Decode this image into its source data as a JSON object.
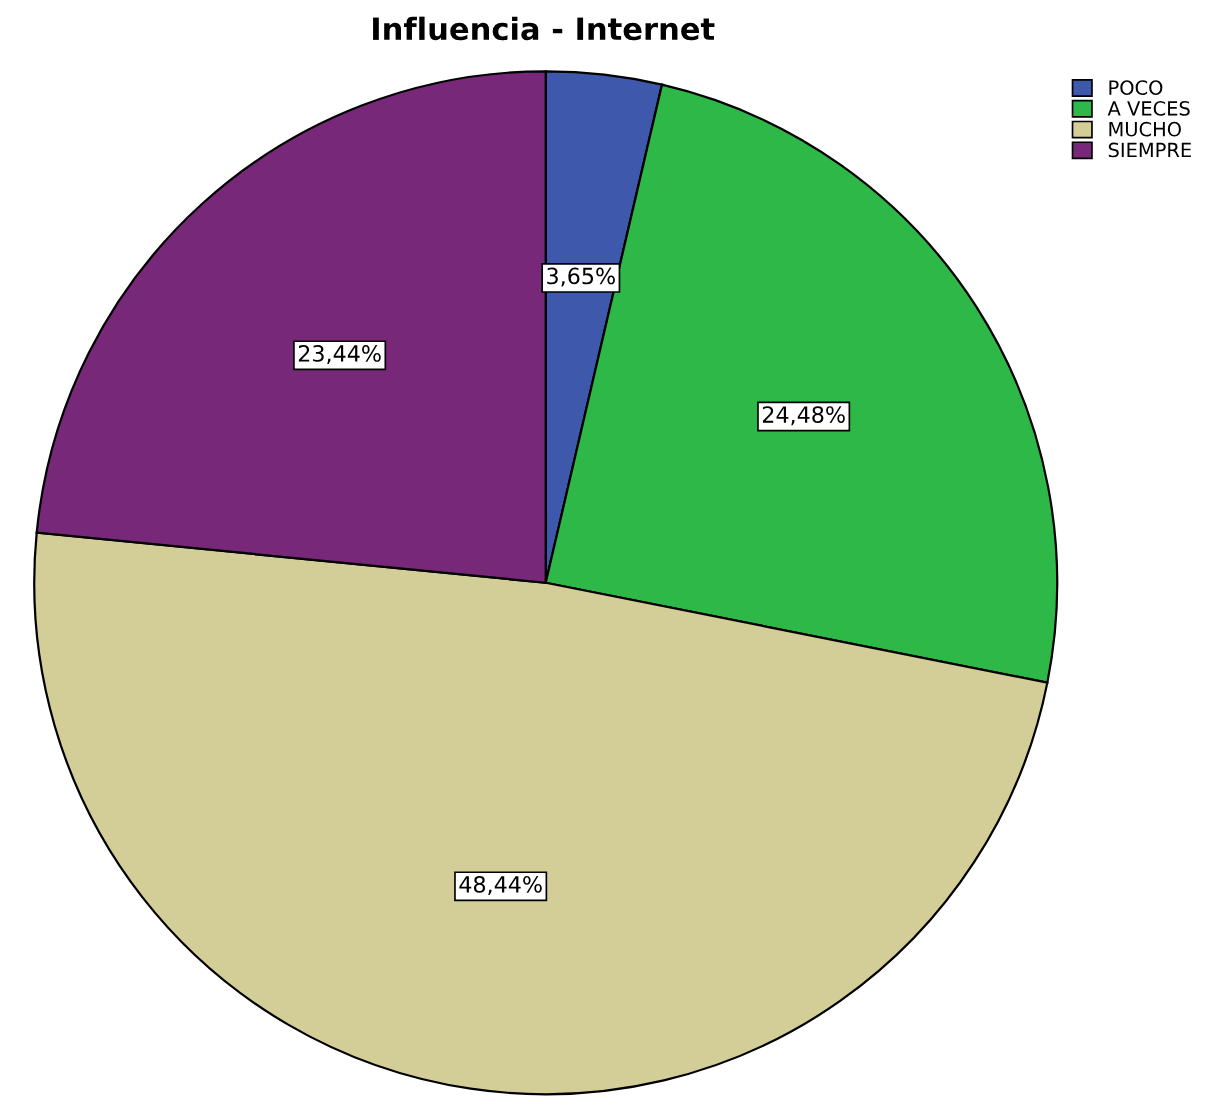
{
  "chart_data": {
    "type": "pie",
    "title": "Influencia - Internet",
    "categories": [
      "POCO",
      "A VECES",
      "MUCHO",
      "SIEMPRE"
    ],
    "values": [
      3.65,
      24.48,
      48.44,
      23.44
    ],
    "value_labels": [
      "3,65%",
      "24,48%",
      "48,44%",
      "23,44%"
    ],
    "colors": [
      "#3e58ac",
      "#2eb848",
      "#d3ce97",
      "#782878"
    ],
    "legend": "top right"
  }
}
